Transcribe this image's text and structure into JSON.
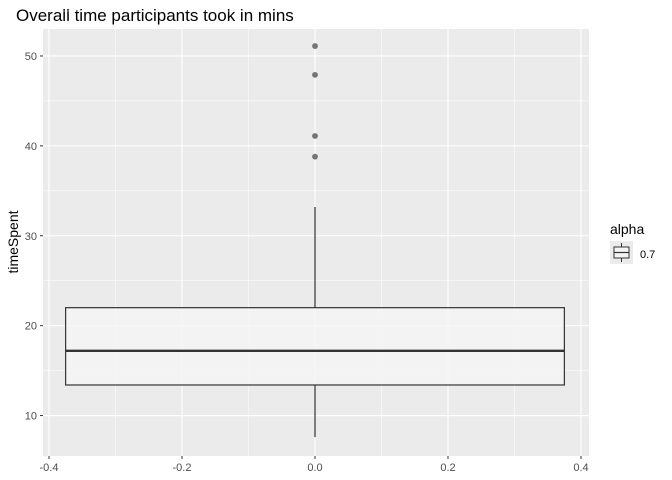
{
  "chart_data": {
    "type": "boxplot",
    "title": "Overall time participants took in mins",
    "xlabel": "",
    "ylabel": "timeSpent",
    "xlim": [
      -0.4,
      0.4
    ],
    "ylim": [
      5.5,
      53.0
    ],
    "x_ticks": [
      -0.4,
      -0.2,
      0.0,
      0.2,
      0.4
    ],
    "x_tick_labels": [
      "-0.4",
      "-0.2",
      "0.0",
      "0.2",
      "0.4"
    ],
    "y_ticks": [
      10,
      20,
      30,
      40,
      50
    ],
    "y_tick_labels": [
      "10",
      "20",
      "30",
      "40",
      "50"
    ],
    "grid": true,
    "box": {
      "x_center": 0.0,
      "x_left": -0.375,
      "x_right": 0.375,
      "whisker_low": 7.6,
      "q1": 13.4,
      "median": 17.2,
      "q3": 22.0,
      "whisker_high": 33.2,
      "outliers": [
        38.8,
        41.1,
        47.9,
        51.1
      ]
    },
    "legend": {
      "title": "alpha",
      "entries": [
        "0.7"
      ],
      "placement": "right"
    },
    "colors": {
      "panel": "#ebebeb",
      "grid_major": "#ffffff",
      "box_fill": "#f4f4f4",
      "box_stroke": "#333333",
      "outlier": "#555555"
    }
  }
}
